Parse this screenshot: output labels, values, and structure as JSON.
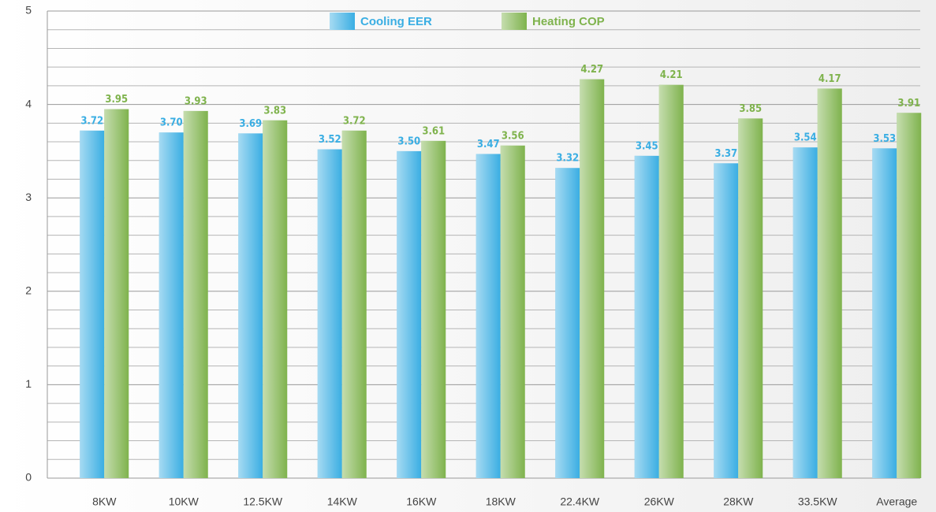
{
  "chart_data": {
    "type": "bar",
    "categories": [
      "8KW",
      "10KW",
      "12.5KW",
      "14KW",
      "16KW",
      "18KW",
      "22.4KW",
      "26KW",
      "28KW",
      "33.5KW",
      "Average"
    ],
    "series": [
      {
        "name": "Cooling EER",
        "color": "#3aaee3",
        "values": [
          3.72,
          3.7,
          3.69,
          3.52,
          3.5,
          3.47,
          3.32,
          3.45,
          3.37,
          3.54,
          3.53
        ],
        "value_labels": [
          "3.72",
          "3.70",
          "3.69",
          "3.52",
          "3.50",
          "3.47",
          "3.32",
          "3.45",
          "3.37",
          "3.54",
          "3.53"
        ]
      },
      {
        "name": "Heating COP",
        "color": "#7fb34d",
        "values": [
          3.95,
          3.93,
          3.83,
          3.72,
          3.61,
          3.56,
          4.27,
          4.21,
          3.85,
          4.17,
          3.91
        ],
        "value_labels": [
          "3.95",
          "3.93",
          "3.83",
          "3.72",
          "3.61",
          "3.56",
          "4.27",
          "4.21",
          "3.85",
          "4.17",
          "3.91"
        ]
      }
    ],
    "ylim": [
      0,
      5
    ],
    "yticks": [
      0,
      1,
      2,
      3,
      4,
      5
    ],
    "grid": true,
    "legend": "top"
  }
}
